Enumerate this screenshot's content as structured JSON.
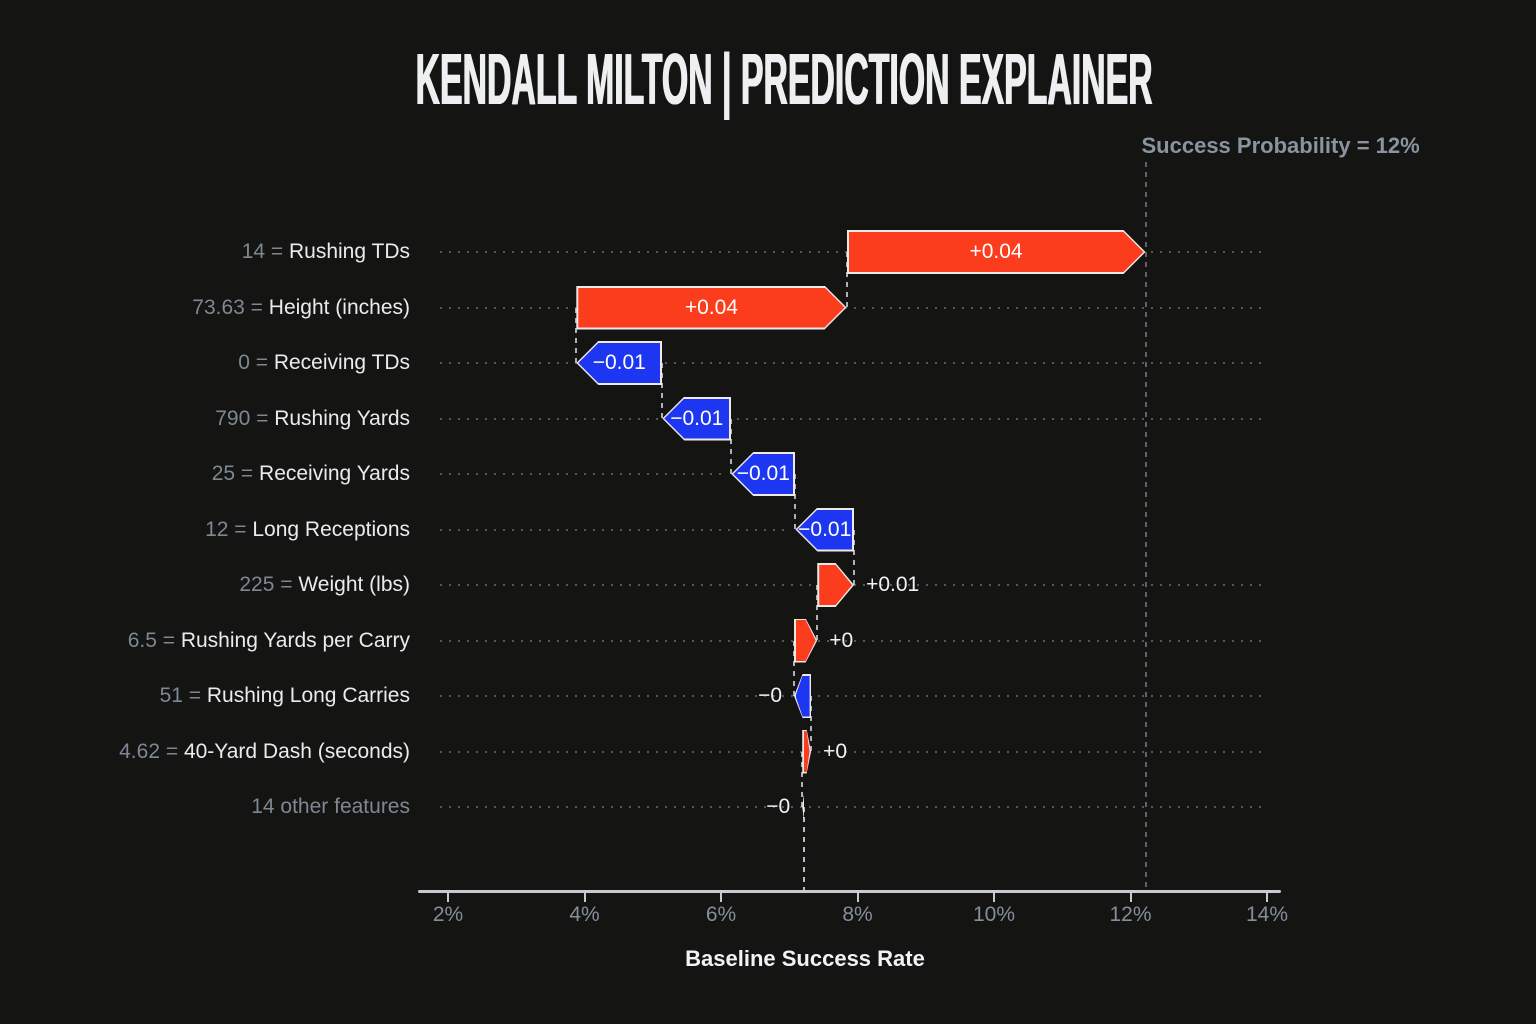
{
  "title": "KENDALL MILTON | PREDICTION EXPLAINER",
  "annotation": {
    "text": "Success Probability = 12%"
  },
  "axis": {
    "label": "Baseline Success Rate",
    "ticks": [
      "2%",
      "4%",
      "6%",
      "8%",
      "10%",
      "12%",
      "14%"
    ],
    "tick_values": [
      2,
      4,
      6,
      8,
      10,
      12,
      14
    ],
    "min": 2,
    "max": 14
  },
  "colors": {
    "background": "#141413",
    "positive": "#fb3d1e",
    "negative": "#1c36f2",
    "bar_outline": "#efe9e6",
    "bar_text": "#ffffff",
    "guide_dots": "#53575c",
    "connector": "#adb3b8",
    "probability_line": "#5e646a",
    "baseline_line": "#b9bec3",
    "axis_line": "#c6cbd0",
    "tick_text": "#848e99",
    "muted_text": "#7e8893",
    "feature_text": "#e9eced",
    "title_text": "#edeff1"
  },
  "chart_data": {
    "type": "waterfall-explainer",
    "title": "KENDALL MILTON | PREDICTION EXPLAINER",
    "xlabel": "Baseline Success Rate",
    "x_axis_pct_range": [
      2,
      14
    ],
    "baseline_pct": 7.22,
    "final_pct": 12.22,
    "final_label": "Success Probability = 12%",
    "rows": [
      {
        "value": "14",
        "feature": "Rushing TDs",
        "contribution_label": "+0.04",
        "start_pct": 7.84,
        "end_pct": 12.22,
        "sign": "positive",
        "label_inside": true
      },
      {
        "value": "73.63",
        "feature": "Height (inches)",
        "contribution_label": "+0.04",
        "start_pct": 3.88,
        "end_pct": 7.84,
        "sign": "positive",
        "label_inside": true
      },
      {
        "value": "0",
        "feature": "Receiving TDs",
        "contribution_label": "−0.01",
        "start_pct": 5.14,
        "end_pct": 3.88,
        "sign": "negative",
        "label_inside": true
      },
      {
        "value": "790",
        "feature": "Rushing Yards",
        "contribution_label": "−0.01",
        "start_pct": 6.15,
        "end_pct": 5.14,
        "sign": "negative",
        "label_inside": true
      },
      {
        "value": "25",
        "feature": "Receiving Yards",
        "contribution_label": "−0.01",
        "start_pct": 7.09,
        "end_pct": 6.15,
        "sign": "negative",
        "label_inside": true,
        "guide_end_pct": 6.15
      },
      {
        "value": "12",
        "feature": "Long Receptions",
        "contribution_label": "−0.01",
        "start_pct": 7.95,
        "end_pct": 7.09,
        "sign": "negative",
        "label_inside": true,
        "guide_end_pct": 7.09
      },
      {
        "value": "225",
        "feature": "Weight (lbs)",
        "contribution_label": "+0.01",
        "start_pct": 7.41,
        "end_pct": 7.95,
        "sign": "positive",
        "label_inside": false
      },
      {
        "value": "6.5",
        "feature": "Rushing Yards per Carry",
        "contribution_label": "+0",
        "start_pct": 7.07,
        "end_pct": 7.41,
        "sign": "positive",
        "label_inside": false
      },
      {
        "value": "51",
        "feature": "Rushing Long Carries",
        "contribution_label": "−0",
        "start_pct": 7.32,
        "end_pct": 7.07,
        "sign": "negative",
        "label_inside": false
      },
      {
        "value": "4.62",
        "feature": "40-Yard Dash (seconds)",
        "contribution_label": "+0",
        "start_pct": 7.19,
        "end_pct": 7.32,
        "sign": "positive",
        "label_inside": false
      },
      {
        "value": "",
        "feature": "14 other features",
        "contribution_label": "−0",
        "start_pct": 7.22,
        "end_pct": 7.19,
        "sign": "negative",
        "label_inside": false
      }
    ]
  }
}
